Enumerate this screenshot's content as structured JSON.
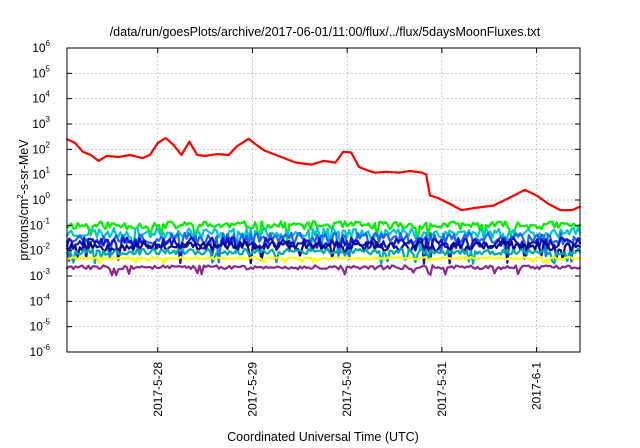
{
  "chart_data": {
    "type": "line",
    "title": "/data/run/goesPlots/archive/2017-06-01/11:00/flux/../flux/5daysMoonFluxes.txt",
    "xlabel": "Coordinated Universal Time (UTC)",
    "ylabel_parts": [
      "protons/cm",
      "2",
      "-s-sr-MeV"
    ],
    "x_range": [
      "2017-05-27T01:00",
      "2017-06-01T11:00"
    ],
    "x_ticks": [
      {
        "date": "2017-05-28T00:00",
        "label": "2017-5-28"
      },
      {
        "date": "2017-05-29T00:00",
        "label": "2017-5-29"
      },
      {
        "date": "2017-05-30T00:00",
        "label": "2017-5-30"
      },
      {
        "date": "2017-05-31T00:00",
        "label": "2017-5-31"
      },
      {
        "date": "2017-06-01T00:00",
        "label": "2017-6-1"
      }
    ],
    "y_scale": "log",
    "y_range": [
      1e-06,
      1000000.0
    ],
    "y_ticks": [
      {
        "value": 1e-06,
        "base": "10",
        "exp": "-6"
      },
      {
        "value": 1e-05,
        "base": "10",
        "exp": "-5"
      },
      {
        "value": 0.0001,
        "base": "10",
        "exp": "-4"
      },
      {
        "value": 0.001,
        "base": "10",
        "exp": "-3"
      },
      {
        "value": 0.01,
        "base": "10",
        "exp": "-2"
      },
      {
        "value": 0.1,
        "base": "10",
        "exp": "-1"
      },
      {
        "value": 1.0,
        "base": "10",
        "exp": "0"
      },
      {
        "value": 10.0,
        "base": "10",
        "exp": "1"
      },
      {
        "value": 100.0,
        "base": "10",
        "exp": "2"
      },
      {
        "value": 1000.0,
        "base": "10",
        "exp": "3"
      },
      {
        "value": 10000.0,
        "base": "10",
        "exp": "4"
      },
      {
        "value": 100000.0,
        "base": "10",
        "exp": "5"
      },
      {
        "value": 1000000.0,
        "base": "10",
        "exp": "6"
      }
    ],
    "grid": true,
    "legend": "none",
    "series": [
      {
        "color": "#ff0000",
        "points": [
          [
            "2017-05-27T01:00",
            250
          ],
          [
            "2017-05-27T03:00",
            180
          ],
          [
            "2017-05-27T05:00",
            80
          ],
          [
            "2017-05-27T07:00",
            60
          ],
          [
            "2017-05-27T09:00",
            35
          ],
          [
            "2017-05-27T11:00",
            55
          ],
          [
            "2017-05-27T14:00",
            50
          ],
          [
            "2017-05-27T17:00",
            60
          ],
          [
            "2017-05-27T20:00",
            45
          ],
          [
            "2017-05-27T22:00",
            60
          ],
          [
            "2017-05-28T00:00",
            180
          ],
          [
            "2017-05-28T02:00",
            280
          ],
          [
            "2017-05-28T04:00",
            150
          ],
          [
            "2017-05-28T06:00",
            60
          ],
          [
            "2017-05-28T08:00",
            200
          ],
          [
            "2017-05-28T10:00",
            60
          ],
          [
            "2017-05-28T12:00",
            55
          ],
          [
            "2017-05-28T15:00",
            65
          ],
          [
            "2017-05-28T18:00",
            60
          ],
          [
            "2017-05-28T20:00",
            130
          ],
          [
            "2017-05-28T23:00",
            260
          ],
          [
            "2017-05-29T01:00",
            150
          ],
          [
            "2017-05-29T03:00",
            90
          ],
          [
            "2017-05-29T06:00",
            60
          ],
          [
            "2017-05-29T08:00",
            45
          ],
          [
            "2017-05-29T11:00",
            30
          ],
          [
            "2017-05-29T15:00",
            25
          ],
          [
            "2017-05-29T18:00",
            35
          ],
          [
            "2017-05-29T21:00",
            30
          ],
          [
            "2017-05-29T23:00",
            80
          ],
          [
            "2017-05-30T01:00",
            75
          ],
          [
            "2017-05-30T03:00",
            20
          ],
          [
            "2017-05-30T05:00",
            15
          ],
          [
            "2017-05-30T07:00",
            12
          ],
          [
            "2017-05-30T10:00",
            13
          ],
          [
            "2017-05-30T13:00",
            12
          ],
          [
            "2017-05-30T16:00",
            14
          ],
          [
            "2017-05-30T19:00",
            12
          ],
          [
            "2017-05-30T20:00",
            10
          ],
          [
            "2017-05-30T21:00",
            1.5
          ],
          [
            "2017-05-30T23:00",
            1.2
          ],
          [
            "2017-05-31T02:00",
            0.7
          ],
          [
            "2017-05-31T05:00",
            0.4
          ],
          [
            "2017-05-31T09:00",
            0.5
          ],
          [
            "2017-05-31T13:00",
            0.6
          ],
          [
            "2017-05-31T17:00",
            1.2
          ],
          [
            "2017-05-31T21:00",
            2.5
          ],
          [
            "2017-06-01T00:00",
            1.5
          ],
          [
            "2017-06-01T03:00",
            0.7
          ],
          [
            "2017-06-01T06:00",
            0.4
          ],
          [
            "2017-06-01T09:00",
            0.4
          ],
          [
            "2017-06-01T11:00",
            0.55
          ]
        ]
      },
      {
        "color": "#00ee00",
        "level": 0.1,
        "noise": 0.16,
        "seed": 11
      },
      {
        "color": "#00c8c8",
        "level": 0.05,
        "noise": 0.2,
        "seed": 23
      },
      {
        "color": "#1e64ff",
        "level": 0.03,
        "noise": 0.24,
        "seed": 37
      },
      {
        "color": "#1414c8",
        "level": 0.02,
        "noise": 0.22,
        "seed": 41
      },
      {
        "color": "#0a0a8c",
        "level": 0.015,
        "noise": 0.18,
        "seed": 53
      },
      {
        "color": "#00aaaa",
        "level": 0.009,
        "noise": 0.12,
        "seed": 67
      },
      {
        "color": "#ffff00",
        "level": 0.005,
        "noise": 0.05,
        "seed": 71
      },
      {
        "color": "#8a2a8a",
        "level": 0.0022,
        "noise": 0.08,
        "seed": 83
      }
    ]
  }
}
